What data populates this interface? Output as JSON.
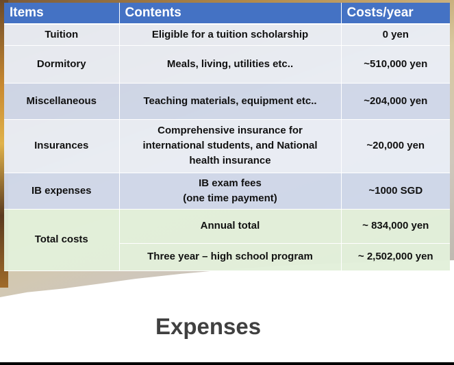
{
  "table": {
    "headers": {
      "items": "Items",
      "contents": "Contents",
      "costs": "Costs/year"
    },
    "rows": [
      {
        "item": "Tuition",
        "contents": [
          "Eligible for a tuition scholarship"
        ],
        "cost": "0 yen"
      },
      {
        "item": "Dormitory",
        "contents": [
          "Meals, living, utilities etc.."
        ],
        "cost": "~510,000 yen"
      },
      {
        "item": "Miscellaneous",
        "contents": [
          "Teaching materials, equipment etc.."
        ],
        "cost": "~204,000 yen"
      },
      {
        "item": "Insurances",
        "contents": [
          "Comprehensive insurance for",
          "international students, and National",
          "health insurance"
        ],
        "cost": "~20,000 yen"
      },
      {
        "item": "IB expenses",
        "contents": [
          "IB exam fees",
          "(one time payment)"
        ],
        "cost": "~1000 SGD"
      }
    ],
    "total": {
      "item": "Total costs",
      "annual_contents": "Annual  total",
      "annual_cost": "~ 834,000 yen",
      "program_contents": "Three year – high school program",
      "program_cost": "~ 2,502,000 yen"
    }
  },
  "title": "Expenses",
  "colors": {
    "header_bg": "#4472c4",
    "row_light": "#e9edf6",
    "row_mid": "#cfd7ea",
    "row_total": "#e2efda",
    "title_text": "#404040"
  }
}
